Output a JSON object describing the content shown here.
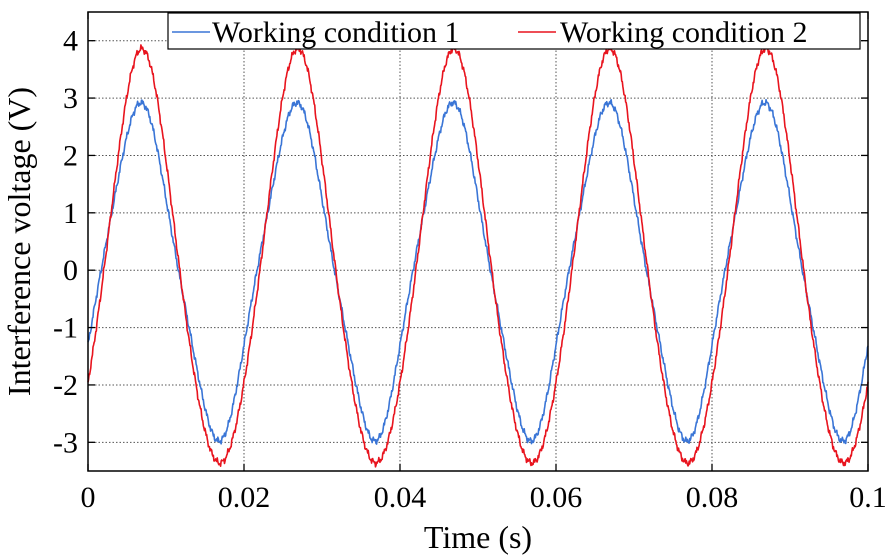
{
  "chart_data": {
    "type": "line",
    "title": "",
    "xlabel": "Time (s)",
    "ylabel": "Interference voltage (V)",
    "xlim": [
      0,
      0.1
    ],
    "ylim": [
      -3.5,
      4.5
    ],
    "x_ticks": [
      0,
      0.02,
      0.04,
      0.06,
      0.08,
      0.1
    ],
    "x_tick_labels": [
      "0",
      "0.02",
      "0.04",
      "0.06",
      "0.08",
      "0.1"
    ],
    "y_ticks": [
      -3,
      -2,
      -1,
      0,
      1,
      2,
      3,
      4
    ],
    "y_tick_labels": [
      "-3",
      "-2",
      "-1",
      "0",
      "1",
      "2",
      "3",
      "4"
    ],
    "grid": true,
    "legend_position": "top-right",
    "series": [
      {
        "name": "Working condition 1",
        "color": "#3a75d6",
        "amplitude": 3.0,
        "period": 0.02,
        "peak_times": [
          0.007,
          0.027,
          0.047,
          0.067,
          0.087
        ],
        "values_at_ticks": {
          "x": [
            0,
            0.02,
            0.04,
            0.06,
            0.08,
            0.1
          ],
          "y": [
            -2.1,
            -2.1,
            -2.1,
            -2.1,
            -2.1,
            -2.1
          ]
        }
      },
      {
        "name": "Working condition 2",
        "color": "#e8141e",
        "amplitude": 3.8,
        "period": 0.02,
        "peak_times": [
          0.0069,
          0.0269,
          0.0469,
          0.0669,
          0.0869
        ],
        "values_at_ticks": {
          "x": [
            0,
            0.02,
            0.04,
            0.06,
            0.08,
            0.1
          ],
          "y": [
            -2.65,
            -2.65,
            -2.65,
            -2.65,
            -2.65,
            -2.65
          ]
        }
      }
    ]
  }
}
